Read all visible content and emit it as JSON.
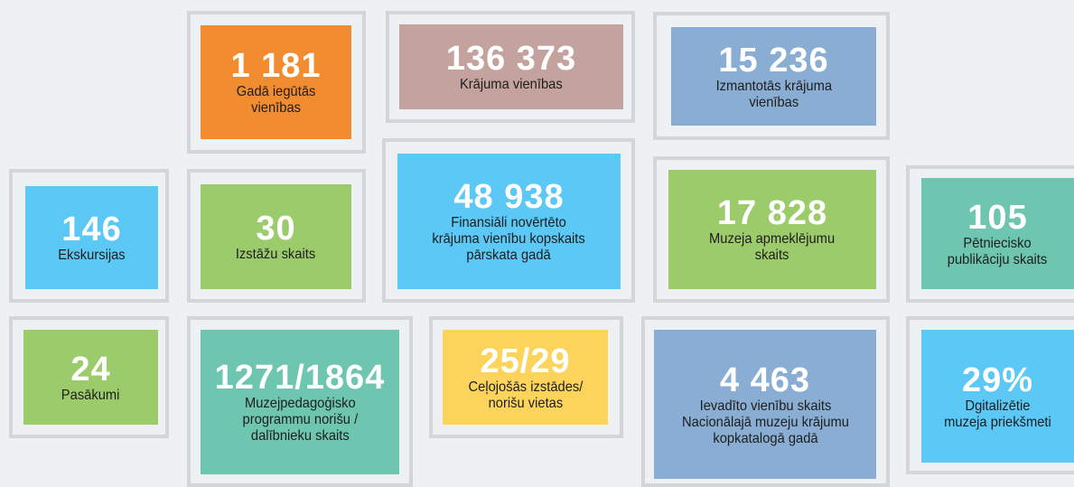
{
  "tiles": [
    {
      "value": "1 181",
      "label": [
        "Gadā iegūtās",
        "vienības"
      ]
    },
    {
      "value": "136 373",
      "label": [
        "Krājuma vienības"
      ]
    },
    {
      "value": "15 236",
      "label": [
        "Izmantotās krājuma",
        "vienības"
      ]
    },
    {
      "value": "146",
      "label": [
        "Ekskursijas"
      ]
    },
    {
      "value": "30",
      "label": [
        "Izstāžu skaits"
      ]
    },
    {
      "value": "48 938",
      "label": [
        "Finansiāli novērtēto",
        "krājuma vienību kopskaits",
        "pārskata gadā"
      ]
    },
    {
      "value": "17 828",
      "label": [
        "Muzeja apmeklējumu",
        "skaits"
      ]
    },
    {
      "value": "105",
      "label": [
        "Pētniecisko",
        "publikāciju skaits"
      ]
    },
    {
      "value": "24",
      "label": [
        "Pasākumi"
      ]
    },
    {
      "value": "1271/1864",
      "label": [
        "Muzejpedagoģisko",
        "programmu norišu /",
        "dalībnieku skaits"
      ]
    },
    {
      "value": "25/29",
      "label": [
        "Ceļojošās izstādes/",
        "norišu vietas"
      ]
    },
    {
      "value": "4 463",
      "label": [
        "Ievadīto vienību skaits",
        "Nacionālajā muzeju krājumu",
        "kopkatalogā gadā"
      ]
    },
    {
      "value": "29%",
      "label": [
        "Dgitalizētie",
        "muzeja priekšmeti"
      ]
    }
  ]
}
